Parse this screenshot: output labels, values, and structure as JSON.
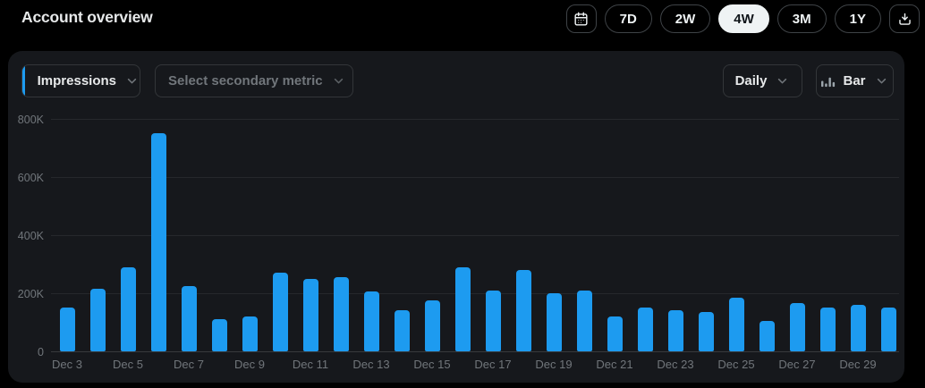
{
  "header": {
    "title": "Account overview",
    "range_buttons": [
      {
        "label": "7D",
        "selected": false
      },
      {
        "label": "2W",
        "selected": false
      },
      {
        "label": "4W",
        "selected": true
      },
      {
        "label": "3M",
        "selected": false
      },
      {
        "label": "1Y",
        "selected": false
      }
    ]
  },
  "toolbar": {
    "primary_metric_label": "Impressions",
    "secondary_metric_placeholder": "Select secondary metric",
    "interval_label": "Daily",
    "chart_type_label": "Bar"
  },
  "chart_data": {
    "type": "bar",
    "categories": [
      "Dec 3",
      "Dec 4",
      "Dec 5",
      "Dec 6",
      "Dec 7",
      "Dec 8",
      "Dec 9",
      "Dec 10",
      "Dec 11",
      "Dec 12",
      "Dec 13",
      "Dec 14",
      "Dec 15",
      "Dec 16",
      "Dec 17",
      "Dec 18",
      "Dec 19",
      "Dec 20",
      "Dec 21",
      "Dec 22",
      "Dec 23",
      "Dec 24",
      "Dec 25",
      "Dec 26",
      "Dec 27",
      "Dec 28",
      "Dec 29",
      "Dec 30"
    ],
    "values": [
      150000,
      215000,
      290000,
      750000,
      225000,
      110000,
      120000,
      270000,
      250000,
      255000,
      205000,
      140000,
      175000,
      290000,
      210000,
      280000,
      200000,
      210000,
      120000,
      150000,
      140000,
      135000,
      185000,
      105000,
      165000,
      150000,
      160000,
      150000
    ],
    "xlabel": "",
    "ylabel": "",
    "ylim": [
      0,
      800000
    ],
    "y_ticks": [
      {
        "value": 0,
        "label": "0"
      },
      {
        "value": 200000,
        "label": "200K"
      },
      {
        "value": 400000,
        "label": "400K"
      },
      {
        "value": 600000,
        "label": "600K"
      },
      {
        "value": 800000,
        "label": "800K"
      }
    ],
    "x_tick_every": 2,
    "grid": true,
    "bar_color": "#1d9bf0"
  },
  "colors": {
    "accent_blue": "#1d9bf0",
    "page_bg": "#000000",
    "card_bg": "#16181c",
    "text_primary": "#e7e9ea",
    "text_secondary": "#71767b",
    "selected_pill_bg": "#eff3f4",
    "selected_pill_text": "#0f1419"
  }
}
